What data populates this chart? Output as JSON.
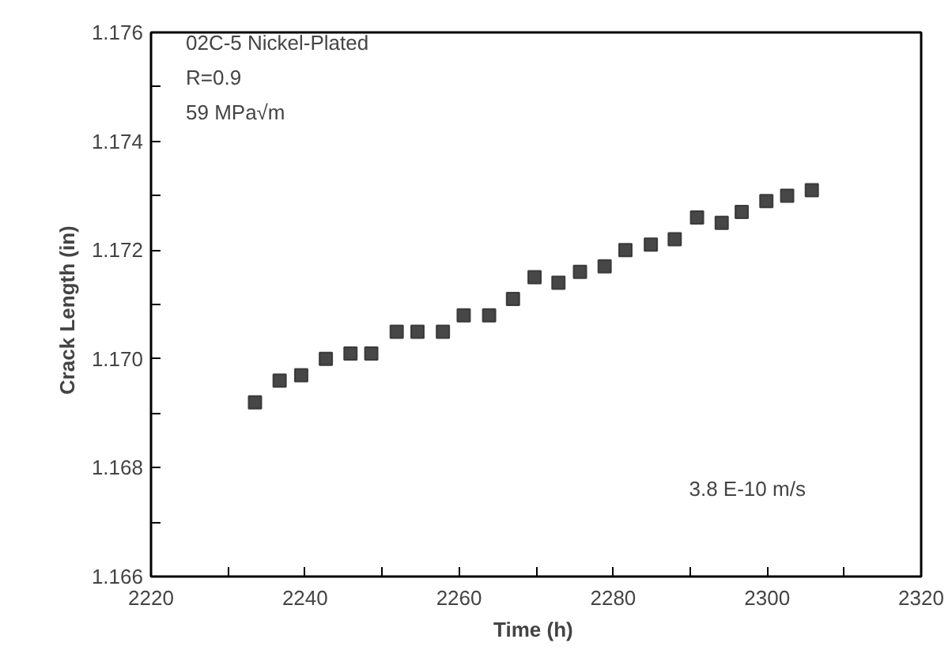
{
  "chart_data": {
    "type": "scatter",
    "xlabel": "Time  (h)",
    "ylabel": "Crack  Length  (in)",
    "annotations": [
      "02C-5 Nickel-Plated",
      "R=0.9",
      "59 MPa√m",
      "3.8 E-10 m/s"
    ],
    "x": [
      2233.5,
      2236.7,
      2239.5,
      2242.7,
      2245.9,
      2248.6,
      2251.9,
      2254.6,
      2257.9,
      2260.6,
      2263.9,
      2267.0,
      2269.8,
      2272.9,
      2275.7,
      2278.9,
      2281.6,
      2284.9,
      2288.0,
      2290.9,
      2294.1,
      2296.7,
      2299.9,
      2302.6,
      2305.8
    ],
    "series": [
      {
        "color": "#333333",
        "values": [
          1.1692,
          1.1696,
          1.1697,
          1.17,
          1.1701,
          1.1701,
          1.1705,
          1.1705,
          1.1705,
          1.1708,
          1.1708,
          1.1711,
          1.1715,
          1.1714,
          1.1716,
          1.1717,
          1.172,
          1.1721,
          1.1722,
          1.1726,
          1.1725,
          1.1727,
          1.1729,
          1.173,
          1.1731
        ]
      }
    ],
    "marker": "square",
    "xlim": [
      2220,
      2320
    ],
    "ylim": [
      1.166,
      1.176
    ],
    "xticks": [
      2220,
      {
        "value": 2230,
        "label": null
      },
      2240,
      {
        "value": 2250,
        "label": null
      },
      2260,
      {
        "value": 2270,
        "label": null
      },
      2280,
      {
        "value": 2290,
        "label": null
      },
      2300,
      {
        "value": 2310,
        "label": null
      },
      2320
    ],
    "yticks": [
      {
        "value": 1.166,
        "label": "1.166"
      },
      {
        "value": 1.167,
        "label": null
      },
      {
        "value": 1.168,
        "label": "1.168"
      },
      {
        "value": 1.169,
        "label": null
      },
      {
        "value": 1.17,
        "label": "1.170"
      },
      {
        "value": 1.171,
        "label": null
      },
      {
        "value": 1.172,
        "label": "1.172"
      },
      {
        "value": 1.173,
        "label": null
      },
      {
        "value": 1.174,
        "label": "1.174"
      },
      {
        "value": 1.175,
        "label": null
      },
      {
        "value": 1.176,
        "label": "1.176"
      }
    ],
    "grid": false
  }
}
